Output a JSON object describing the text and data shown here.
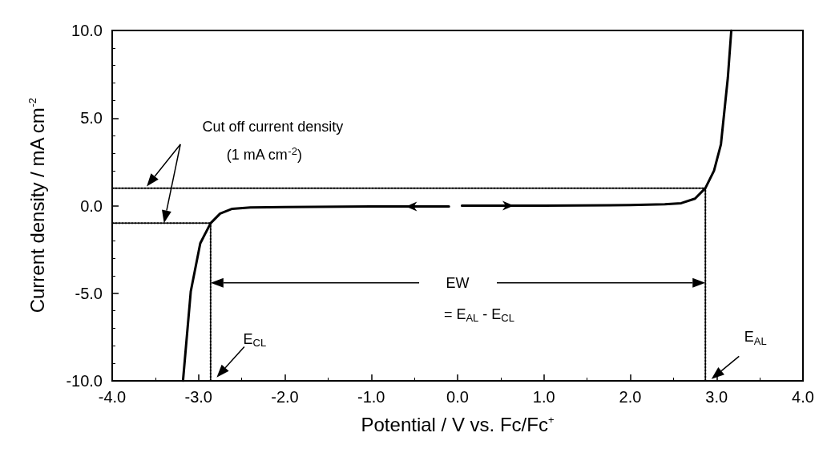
{
  "chart_data": {
    "type": "line",
    "xlabel": "Potential / V vs. Fc/Fc$^{+}$",
    "ylabel": "Current density / mA cm$^{-2}$",
    "xlim": [
      -4,
      4
    ],
    "xticks": [
      {
        "value": -4,
        "label": "-4.0"
      },
      {
        "value": -3,
        "label": "-3.0"
      },
      {
        "value": -2,
        "label": "-2.0"
      },
      {
        "value": -1,
        "label": "-1.0"
      },
      {
        "value": 0,
        "label": "0.0"
      },
      {
        "value": 1,
        "label": "1.0"
      },
      {
        "value": 2,
        "label": "2.0"
      },
      {
        "value": 3,
        "label": "3.0"
      },
      {
        "value": 4,
        "label": "4.0"
      }
    ],
    "ylim": [
      -10,
      10
    ],
    "yticks": [
      {
        "value": -10,
        "label": "-10.0"
      },
      {
        "value": -5,
        "label": "-5.0"
      },
      {
        "value": 0,
        "label": "0.0"
      },
      {
        "value": 5,
        "label": "5.0"
      },
      {
        "value": 10,
        "label": "10.0"
      }
    ],
    "grid": false,
    "marker": "none",
    "series": [
      {
        "color": "#000000",
        "line_style": "solid",
        "x": [
          -3.18,
          -3.09,
          -2.98,
          -2.86,
          -2.75,
          -2.61,
          -2.4,
          -2.0,
          -1.0,
          -0.1,
          null,
          0.05,
          1.0,
          2.0,
          2.4,
          2.59,
          2.75,
          2.87,
          2.97,
          3.05,
          3.13,
          3.17
        ],
        "values": [
          -10,
          -4.9,
          -2.15,
          -1,
          -0.45,
          -0.18,
          -0.1,
          -0.08,
          -0.05,
          -0.05,
          null,
          0,
          0,
          0.03,
          0.08,
          0.14,
          0.4,
          1,
          2,
          3.5,
          7.3,
          10
        ]
      },
      {
        "color": "#000000",
        "line_style": "dotted",
        "x": [
          -4,
          2.87
        ],
        "values": [
          1,
          1
        ]
      },
      {
        "color": "#000000",
        "line_style": "dotted",
        "x": [
          -4,
          -2.86
        ],
        "values": [
          -1,
          -1
        ]
      },
      {
        "color": "#000000",
        "line_style": "dotted",
        "x": [
          -2.86,
          -2.86
        ],
        "values": [
          -10,
          -1
        ]
      },
      {
        "color": "#000000",
        "line_style": "dotted",
        "x": [
          2.87,
          2.87
        ],
        "values": [
          -10,
          1
        ]
      }
    ],
    "annotations": [
      "Cut off current density",
      "(1 mA cm$^{-2}$)",
      {
        "text": "EW",
        "x": 0,
        "y": -4.4
      },
      "= E$_{AL}$ - E$_{CL}$",
      {
        "text": "E$_{CL}$",
        "x": -2.35,
        "y": -7.6
      },
      {
        "text": "E$_{AL}$",
        "x": 3.45,
        "y": -7.5
      }
    ]
  }
}
